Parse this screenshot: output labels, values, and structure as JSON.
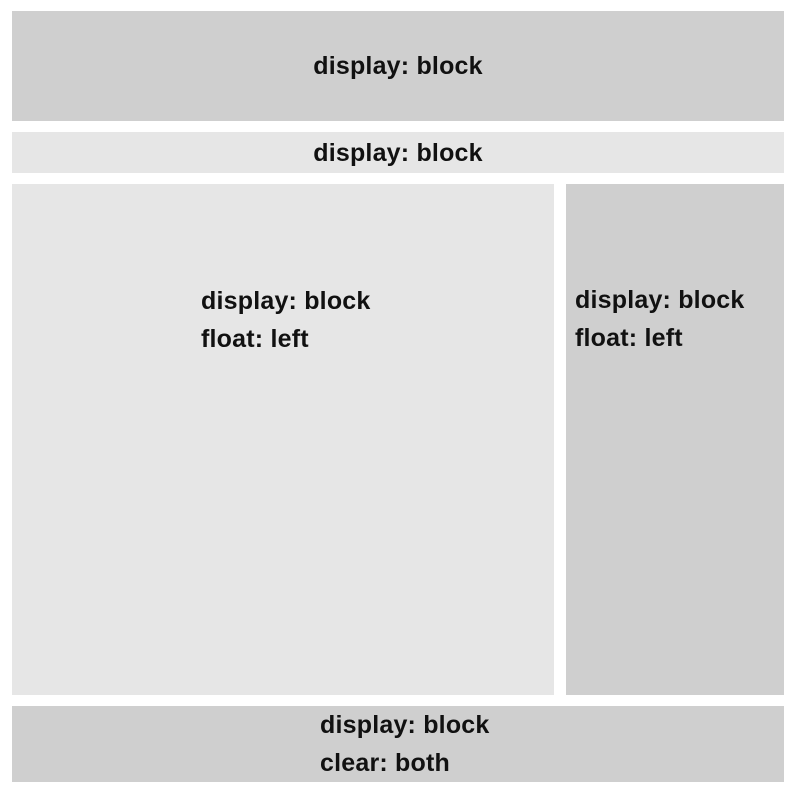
{
  "colors": {
    "dark_gray": "#cfcfcf",
    "light_gray": "#e6e6e6",
    "text": "#111111",
    "background": "#ffffff"
  },
  "boxes": {
    "block_1": {
      "line1": "display: block"
    },
    "block_2": {
      "line1": "display: block"
    },
    "float_left_1": {
      "line1": "display: block",
      "line2": "float: left"
    },
    "float_left_2": {
      "line1": "display: block",
      "line2": "float: left"
    },
    "block_clear": {
      "line1": "display: block",
      "line2": "clear: both"
    }
  }
}
